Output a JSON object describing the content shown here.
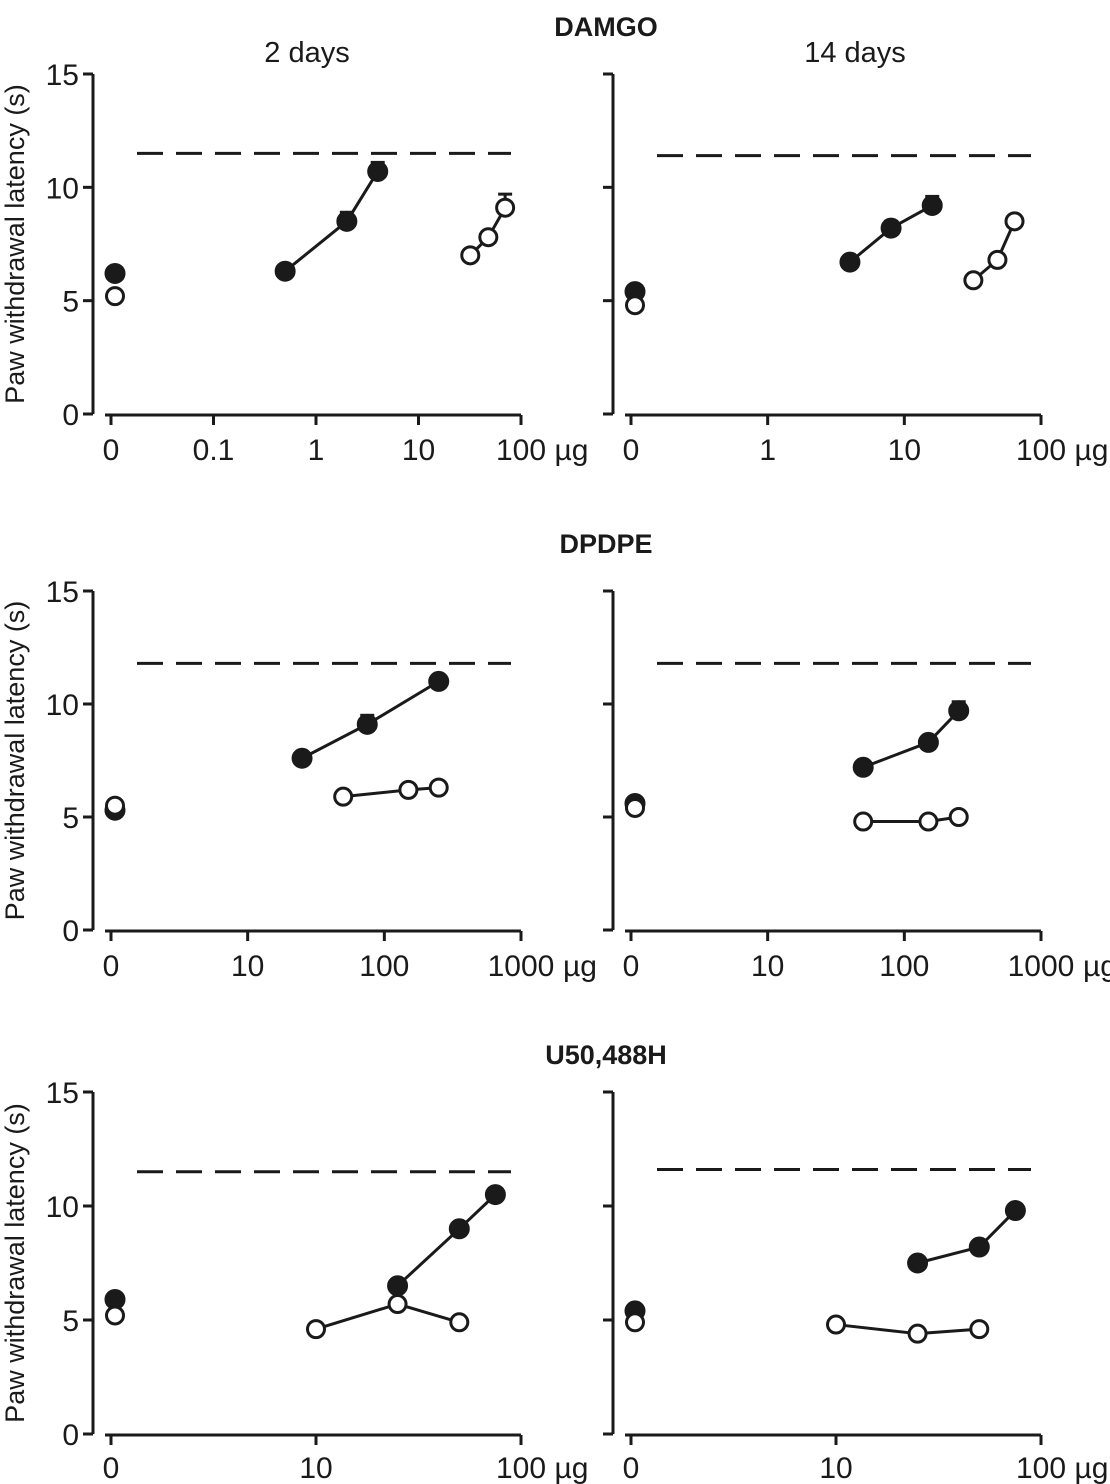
{
  "figure": {
    "ylabel": "Paw withdrawal latency (s)",
    "column_titles": [
      "2 days",
      "14 days"
    ]
  },
  "chart_data": [
    {
      "id": "damgo-2d",
      "row": 0,
      "col": 0,
      "type": "scatter",
      "row_title": "DAMGO",
      "column_title": "2 days",
      "ylabel": "Paw withdrawal latency (s)",
      "ylim": [
        0,
        15
      ],
      "yticks": [
        0,
        5,
        10,
        15
      ],
      "ytick_labels": [
        "0",
        "5",
        "10",
        "15"
      ],
      "x_scale": "log-with-zero",
      "xticks": [
        0,
        0.1,
        1,
        10,
        100
      ],
      "xtick_labels": [
        "0",
        "0.1",
        "1",
        "10",
        "100"
      ],
      "x_unit": "µg",
      "reference_line": 11.5,
      "series": [
        {
          "filled": true,
          "line": false,
          "points": [
            {
              "x": 0,
              "y": 6.2
            }
          ]
        },
        {
          "filled": false,
          "line": false,
          "points": [
            {
              "x": 0,
              "y": 5.2
            }
          ]
        },
        {
          "filled": true,
          "line": true,
          "points": [
            {
              "x": 0.5,
              "y": 6.3
            },
            {
              "x": 2,
              "y": 8.5,
              "err": 0.4
            },
            {
              "x": 4,
              "y": 10.7,
              "err": 0.4
            }
          ]
        },
        {
          "filled": false,
          "line": true,
          "points": [
            {
              "x": 32,
              "y": 7.0
            },
            {
              "x": 48,
              "y": 7.8
            },
            {
              "x": 70,
              "y": 9.1,
              "err": 0.6
            }
          ]
        }
      ]
    },
    {
      "id": "damgo-14d",
      "row": 0,
      "col": 1,
      "type": "scatter",
      "row_title": "DAMGO",
      "column_title": "14 days",
      "ylabel": "",
      "ylim": [
        0,
        15
      ],
      "yticks": [
        0,
        5,
        10,
        15
      ],
      "ytick_labels": [],
      "x_scale": "log-with-zero",
      "xticks": [
        0,
        1,
        10,
        100
      ],
      "xtick_labels": [
        "0",
        "1",
        "10",
        "100"
      ],
      "x_unit": "µg",
      "reference_line": 11.4,
      "series": [
        {
          "filled": true,
          "line": false,
          "points": [
            {
              "x": 0,
              "y": 5.4
            }
          ]
        },
        {
          "filled": false,
          "line": false,
          "points": [
            {
              "x": 0,
              "y": 4.8
            }
          ]
        },
        {
          "filled": true,
          "line": true,
          "points": [
            {
              "x": 4,
              "y": 6.7
            },
            {
              "x": 8,
              "y": 8.2,
              "err": 0.3
            },
            {
              "x": 16,
              "y": 9.2,
              "err": 0.4
            }
          ]
        },
        {
          "filled": false,
          "line": true,
          "points": [
            {
              "x": 32,
              "y": 5.9
            },
            {
              "x": 48,
              "y": 6.8
            },
            {
              "x": 64,
              "y": 8.5
            }
          ]
        }
      ]
    },
    {
      "id": "dpdpe-2d",
      "row": 1,
      "col": 0,
      "type": "scatter",
      "row_title": "DPDPE",
      "column_title": "",
      "ylabel": "Paw withdrawal latency (s)",
      "ylim": [
        0,
        15
      ],
      "yticks": [
        0,
        5,
        10,
        15
      ],
      "ytick_labels": [
        "0",
        "5",
        "10",
        "15"
      ],
      "x_scale": "log-with-zero",
      "xticks": [
        0,
        10,
        100,
        1000
      ],
      "xtick_labels": [
        "0",
        "10",
        "100",
        "1000"
      ],
      "x_unit": "µg",
      "reference_line": 11.8,
      "series": [
        {
          "filled": true,
          "line": false,
          "points": [
            {
              "x": 0,
              "y": 5.3
            }
          ]
        },
        {
          "filled": false,
          "line": false,
          "points": [
            {
              "x": 0,
              "y": 5.5
            }
          ]
        },
        {
          "filled": true,
          "line": true,
          "points": [
            {
              "x": 25,
              "y": 7.6
            },
            {
              "x": 75,
              "y": 9.1,
              "err": 0.4
            },
            {
              "x": 250,
              "y": 11.0
            }
          ]
        },
        {
          "filled": false,
          "line": true,
          "points": [
            {
              "x": 50,
              "y": 5.9
            },
            {
              "x": 150,
              "y": 6.2
            },
            {
              "x": 250,
              "y": 6.3
            }
          ]
        }
      ]
    },
    {
      "id": "dpdpe-14d",
      "row": 1,
      "col": 1,
      "type": "scatter",
      "row_title": "DPDPE",
      "column_title": "",
      "ylabel": "",
      "ylim": [
        0,
        15
      ],
      "yticks": [
        0,
        5,
        10,
        15
      ],
      "ytick_labels": [],
      "x_scale": "log-with-zero",
      "xticks": [
        0,
        10,
        100,
        1000
      ],
      "xtick_labels": [
        "0",
        "10",
        "100",
        "1000"
      ],
      "x_unit": "µg",
      "reference_line": 11.8,
      "series": [
        {
          "filled": true,
          "line": false,
          "points": [
            {
              "x": 0,
              "y": 5.6
            }
          ]
        },
        {
          "filled": false,
          "line": false,
          "points": [
            {
              "x": 0,
              "y": 5.4
            }
          ]
        },
        {
          "filled": true,
          "line": true,
          "points": [
            {
              "x": 50,
              "y": 7.2
            },
            {
              "x": 150,
              "y": 8.3
            },
            {
              "x": 250,
              "y": 9.7,
              "err": 0.4
            }
          ]
        },
        {
          "filled": false,
          "line": true,
          "points": [
            {
              "x": 50,
              "y": 4.8
            },
            {
              "x": 150,
              "y": 4.8
            },
            {
              "x": 250,
              "y": 5.0
            }
          ]
        }
      ]
    },
    {
      "id": "u50-2d",
      "row": 2,
      "col": 0,
      "type": "scatter",
      "row_title": "U50,488H",
      "column_title": "",
      "ylabel": "Paw withdrawal latency (s)",
      "ylim": [
        0,
        15
      ],
      "yticks": [
        0,
        5,
        10,
        15
      ],
      "ytick_labels": [
        "0",
        "5",
        "10",
        "15"
      ],
      "x_scale": "log-with-zero",
      "xticks": [
        0,
        10,
        100
      ],
      "xtick_labels": [
        "0",
        "10",
        "100"
      ],
      "x_unit": "µg",
      "reference_line": 11.5,
      "series": [
        {
          "filled": true,
          "line": false,
          "points": [
            {
              "x": 0,
              "y": 5.9
            }
          ]
        },
        {
          "filled": false,
          "line": false,
          "points": [
            {
              "x": 0,
              "y": 5.2
            }
          ]
        },
        {
          "filled": true,
          "line": true,
          "points": [
            {
              "x": 25,
              "y": 6.5
            },
            {
              "x": 50,
              "y": 9.0
            },
            {
              "x": 75,
              "y": 10.5
            }
          ]
        },
        {
          "filled": false,
          "line": true,
          "points": [
            {
              "x": 10,
              "y": 4.6
            },
            {
              "x": 25,
              "y": 5.7
            },
            {
              "x": 50,
              "y": 4.9
            }
          ]
        }
      ]
    },
    {
      "id": "u50-14d",
      "row": 2,
      "col": 1,
      "type": "scatter",
      "row_title": "U50,488H",
      "column_title": "",
      "ylabel": "",
      "ylim": [
        0,
        15
      ],
      "yticks": [
        0,
        5,
        10,
        15
      ],
      "ytick_labels": [],
      "x_scale": "log-with-zero",
      "xticks": [
        0,
        10,
        100
      ],
      "xtick_labels": [
        "0",
        "10",
        "100"
      ],
      "x_unit": "µg",
      "reference_line": 11.6,
      "series": [
        {
          "filled": true,
          "line": false,
          "points": [
            {
              "x": 0,
              "y": 5.4
            }
          ]
        },
        {
          "filled": false,
          "line": false,
          "points": [
            {
              "x": 0,
              "y": 4.9
            }
          ]
        },
        {
          "filled": true,
          "line": true,
          "points": [
            {
              "x": 25,
              "y": 7.5
            },
            {
              "x": 50,
              "y": 8.2
            },
            {
              "x": 75,
              "y": 9.8
            }
          ]
        },
        {
          "filled": false,
          "line": true,
          "points": [
            {
              "x": 10,
              "y": 4.8
            },
            {
              "x": 25,
              "y": 4.4
            },
            {
              "x": 50,
              "y": 4.6
            }
          ]
        }
      ]
    }
  ]
}
